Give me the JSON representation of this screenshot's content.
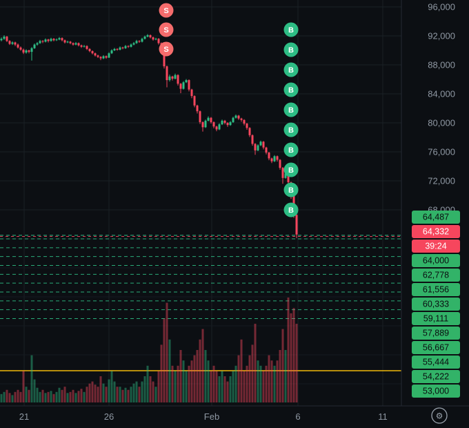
{
  "colors": {
    "bg": "#0c0f13",
    "up": "#2ebd85",
    "down": "#f6465d",
    "grid": "#1a2026",
    "grid_faint": "#151a20",
    "axis_text": "#8f98a3",
    "tag_green": "#32b368",
    "tag_green_text": "#0b0e11",
    "tag_red": "#f6465d",
    "tag_red_text": "#ffffff",
    "level_line": "#2ebd85",
    "avg_line": "#f0b90b",
    "badge_buy": "#2ebd85",
    "badge_sell": "#f56c6c",
    "badge_text": "#ffffff",
    "divider": "#242a33",
    "icon": "#9aa3ad"
  },
  "footer": {
    "settings_icon": "⚙"
  },
  "chart_data": {
    "type": "candlestick",
    "title": "",
    "ylim": [
      43000,
      96500
    ],
    "grid": true,
    "y_axis": {
      "labels": [
        "96,000",
        "92,000",
        "88,000",
        "84,000",
        "80,000",
        "76,000",
        "72,000",
        "68,000"
      ],
      "values": [
        96000,
        92000,
        88000,
        84000,
        80000,
        76000,
        72000,
        68000
      ]
    },
    "x_axis": {
      "labels": [
        "21",
        "26",
        "Feb",
        "6",
        "11"
      ]
    },
    "current_price": {
      "value": 64332,
      "label": "64,332",
      "countdown": "39:24"
    },
    "upper_level": {
      "value": 64487,
      "label": "64,487"
    },
    "grid_levels": {
      "labels": [
        "64,000",
        "62,778",
        "61,556",
        "60,333",
        "59,111",
        "57,889",
        "56,667",
        "55,444",
        "54,222",
        "53,000"
      ],
      "values": [
        64000,
        62778,
        61556,
        60333,
        59111,
        57889,
        56667,
        55444,
        54222,
        53000
      ]
    },
    "price_tags": [
      {
        "label": "64,487",
        "color": "green"
      },
      {
        "label": "64,332",
        "color": "red"
      },
      {
        "label": "39:24",
        "color": "red"
      },
      {
        "label": "64,000",
        "color": "green"
      },
      {
        "label": "62,778",
        "color": "green"
      },
      {
        "label": "61,556",
        "color": "green"
      },
      {
        "label": "60,333",
        "color": "green"
      },
      {
        "label": "59,111",
        "color": "green"
      },
      {
        "label": "57,889",
        "color": "green"
      },
      {
        "label": "56,667",
        "color": "green"
      },
      {
        "label": "55,444",
        "color": "green"
      },
      {
        "label": "54,222",
        "color": "green"
      },
      {
        "label": "53,000",
        "color": "green"
      }
    ],
    "markers": {
      "sell": {
        "label": "S",
        "count": 3
      },
      "buy": {
        "label": "B",
        "count": 10
      }
    },
    "candles": [
      [
        91400,
        91800,
        91250,
        91600
      ],
      [
        91600,
        92100,
        91450,
        91900
      ],
      [
        91900,
        92000,
        91150,
        91300
      ],
      [
        91300,
        91400,
        90750,
        90900
      ],
      [
        90900,
        91250,
        90750,
        91100
      ],
      [
        91100,
        91200,
        90600,
        90800
      ],
      [
        90800,
        90950,
        90250,
        90400
      ],
      [
        90400,
        90550,
        89950,
        90100
      ],
      [
        90100,
        90250,
        89500,
        89700
      ],
      [
        89700,
        90150,
        89550,
        90000
      ],
      [
        90000,
        90100,
        89600,
        89800
      ],
      [
        89800,
        90450,
        88600,
        90300
      ],
      [
        90300,
        90950,
        90200,
        90800
      ],
      [
        90800,
        91150,
        90650,
        91000
      ],
      [
        91000,
        91450,
        90900,
        91300
      ],
      [
        91300,
        91400,
        91000,
        91200
      ],
      [
        91200,
        91650,
        91100,
        91500
      ],
      [
        91500,
        91600,
        91100,
        91300
      ],
      [
        91300,
        91750,
        91200,
        91600
      ],
      [
        91600,
        91700,
        91250,
        91400
      ],
      [
        91400,
        91650,
        91300,
        91500
      ],
      [
        91500,
        91850,
        91400,
        91700
      ],
      [
        91700,
        91800,
        91250,
        91400
      ],
      [
        91400,
        91500,
        90950,
        91100
      ],
      [
        91100,
        91350,
        91000,
        91200
      ],
      [
        91200,
        91300,
        90850,
        91000
      ],
      [
        91000,
        91100,
        90650,
        90800
      ],
      [
        90800,
        91150,
        90700,
        91000
      ],
      [
        91000,
        91100,
        90550,
        90700
      ],
      [
        90700,
        90800,
        90350,
        90500
      ],
      [
        90500,
        90750,
        90400,
        90600
      ],
      [
        90600,
        90700,
        90050,
        90200
      ],
      [
        90200,
        90300,
        89750,
        89900
      ],
      [
        89900,
        90000,
        89450,
        89600
      ],
      [
        89600,
        89700,
        89150,
        89300
      ],
      [
        89300,
        89400,
        88950,
        89100
      ],
      [
        89100,
        89200,
        88650,
        88900
      ],
      [
        88900,
        89350,
        88800,
        89200
      ],
      [
        89200,
        89300,
        88850,
        89000
      ],
      [
        89000,
        89750,
        88950,
        89600
      ],
      [
        89600,
        90150,
        89500,
        90000
      ],
      [
        90000,
        90350,
        89900,
        90200
      ],
      [
        90200,
        90300,
        89950,
        90100
      ],
      [
        90100,
        90550,
        90000,
        90400
      ],
      [
        90400,
        90500,
        90150,
        90300
      ],
      [
        90300,
        90750,
        90200,
        90600
      ],
      [
        90600,
        90700,
        90350,
        90500
      ],
      [
        90500,
        90950,
        90400,
        90800
      ],
      [
        90800,
        91150,
        90700,
        91000
      ],
      [
        91000,
        91450,
        90900,
        91300
      ],
      [
        91300,
        91400,
        91050,
        91200
      ],
      [
        91200,
        91750,
        91100,
        91600
      ],
      [
        91600,
        92050,
        91500,
        91900
      ],
      [
        91900,
        92250,
        91800,
        92100
      ],
      [
        92100,
        92200,
        91650,
        91800
      ],
      [
        91800,
        91900,
        91350,
        91500
      ],
      [
        91500,
        91750,
        91400,
        91600
      ],
      [
        91600,
        91700,
        90800,
        91000
      ],
      [
        91000,
        91100,
        89600,
        89800
      ],
      [
        89800,
        89900,
        87500,
        87800
      ],
      [
        87800,
        87900,
        84900,
        85900
      ],
      [
        85900,
        86650,
        85700,
        86400
      ],
      [
        86400,
        86500,
        85850,
        86100
      ],
      [
        86100,
        86800,
        86000,
        86600
      ],
      [
        86600,
        86700,
        85150,
        85400
      ],
      [
        85400,
        85500,
        84100,
        84700
      ],
      [
        84700,
        85750,
        84600,
        85600
      ],
      [
        85600,
        86050,
        85500,
        85900
      ],
      [
        85900,
        86000,
        84350,
        84600
      ],
      [
        84600,
        84700,
        83400,
        83700
      ],
      [
        83700,
        83800,
        82150,
        82400
      ],
      [
        82400,
        82500,
        81300,
        81600
      ],
      [
        81600,
        81700,
        79850,
        80100
      ],
      [
        80100,
        80200,
        78800,
        79400
      ],
      [
        79400,
        80450,
        79300,
        80300
      ],
      [
        80300,
        80900,
        80200,
        80700
      ],
      [
        80700,
        80800,
        79900,
        80100
      ],
      [
        80100,
        80200,
        79250,
        79500
      ],
      [
        79500,
        79600,
        78850,
        79100
      ],
      [
        79100,
        79950,
        79000,
        79800
      ],
      [
        79800,
        80450,
        79700,
        80300
      ],
      [
        80300,
        80400,
        79800,
        80000
      ],
      [
        80000,
        80100,
        79450,
        79700
      ],
      [
        79700,
        80250,
        79600,
        80100
      ],
      [
        80100,
        80850,
        80000,
        80700
      ],
      [
        80700,
        81150,
        80600,
        81000
      ],
      [
        81000,
        81100,
        80400,
        80600
      ],
      [
        80600,
        80700,
        80150,
        80400
      ],
      [
        80400,
        80500,
        79650,
        79900
      ],
      [
        79900,
        80000,
        79050,
        79300
      ],
      [
        79300,
        79400,
        78050,
        78300
      ],
      [
        78300,
        78400,
        76850,
        77100
      ],
      [
        77100,
        77200,
        75600,
        76200
      ],
      [
        76200,
        77050,
        76100,
        76900
      ],
      [
        76900,
        77550,
        76800,
        77400
      ],
      [
        77400,
        77500,
        76350,
        76600
      ],
      [
        76600,
        76700,
        75650,
        75900
      ],
      [
        75900,
        76000,
        74850,
        75100
      ],
      [
        75100,
        75200,
        74450,
        74700
      ],
      [
        74700,
        75550,
        74600,
        75400
      ],
      [
        75400,
        75500,
        74650,
        74900
      ],
      [
        74900,
        75000,
        73550,
        73800
      ],
      [
        73800,
        73900,
        71600,
        72400
      ],
      [
        72400,
        73250,
        72300,
        73000
      ],
      [
        73000,
        73100,
        71350,
        71800
      ],
      [
        71800,
        71900,
        69500,
        69900
      ],
      [
        69900,
        70000,
        66900,
        67300
      ],
      [
        67300,
        67400,
        64100,
        64600
      ]
    ],
    "volumes": [
      0.08,
      0.1,
      0.12,
      0.09,
      0.07,
      0.1,
      0.12,
      0.1,
      0.3,
      0.15,
      0.12,
      0.45,
      0.22,
      0.14,
      0.1,
      0.12,
      0.09,
      0.1,
      0.11,
      0.08,
      0.1,
      0.14,
      0.12,
      0.15,
      0.09,
      0.1,
      0.12,
      0.09,
      0.11,
      0.13,
      0.1,
      0.15,
      0.18,
      0.2,
      0.17,
      0.15,
      0.25,
      0.18,
      0.15,
      0.22,
      0.3,
      0.2,
      0.15,
      0.15,
      0.12,
      0.14,
      0.12,
      0.15,
      0.18,
      0.2,
      0.15,
      0.2,
      0.25,
      0.35,
      0.25,
      0.2,
      0.15,
      0.3,
      0.55,
      0.8,
      0.95,
      0.6,
      0.35,
      0.3,
      0.35,
      0.5,
      0.4,
      0.3,
      0.35,
      0.4,
      0.45,
      0.5,
      0.6,
      0.7,
      0.5,
      0.4,
      0.3,
      0.35,
      0.3,
      0.25,
      0.3,
      0.25,
      0.2,
      0.25,
      0.3,
      0.35,
      0.45,
      0.6,
      0.3,
      0.35,
      0.45,
      0.55,
      0.75,
      0.4,
      0.35,
      0.3,
      0.35,
      0.45,
      0.4,
      0.35,
      0.4,
      0.5,
      0.7,
      0.5,
      1.0,
      0.85,
      0.9,
      0.75
    ]
  }
}
